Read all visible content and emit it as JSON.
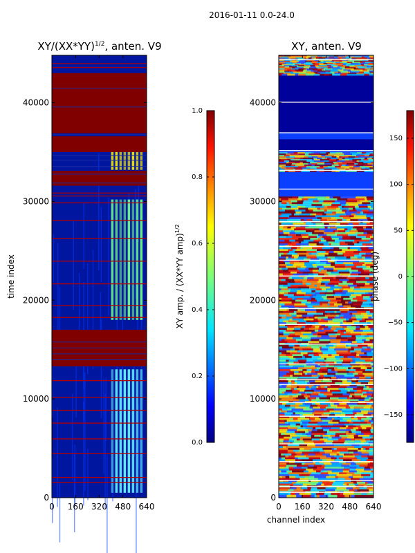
{
  "figure": {
    "suptitle": "2016-01-11 0.0-24.0"
  },
  "chart_data": [
    {
      "type": "heatmap",
      "title_main": "XY/(XX*YY)",
      "title_exponent": "1/2",
      "title_suffix": ", anten. V9",
      "xlabel": "",
      "ylabel": "time index",
      "xlim": [
        0,
        640
      ],
      "ylim": [
        0,
        44800
      ],
      "x_ticks": [
        "0",
        "160",
        "320",
        "480",
        "640"
      ],
      "y_ticks": [
        "0",
        "10000",
        "20000",
        "30000",
        "40000"
      ],
      "y_tick_values": [
        0,
        10000,
        20000,
        30000,
        40000
      ],
      "background_color": "#00169f",
      "saturated_bands": [
        [
          43000,
          36900
        ],
        [
          36600,
          35000
        ],
        [
          33100,
          31600
        ],
        [
          17000,
          13300
        ]
      ],
      "thin_lines_kyear": [
        44000,
        43600,
        30900,
        30600,
        29900,
        28100,
        26300,
        24000,
        21700,
        19500,
        18300,
        11900,
        10200,
        8900,
        7600,
        6000,
        4500,
        2100,
        1600
      ],
      "bright_regions": [
        {
          "x0": 400,
          "x1": 620,
          "y0": 30200,
          "y1": 18000,
          "color": "#75ff88"
        },
        {
          "x0": 400,
          "x1": 620,
          "y0": 13000,
          "y1": 500,
          "color": "#67f3ff"
        },
        {
          "x0": 400,
          "x1": 600,
          "y0": 35000,
          "y1": 33200,
          "color": "#ffef00"
        }
      ],
      "colorbar": {
        "label_main": "XY amp. / (XX*YY amp)",
        "label_exponent": "1/2",
        "range": [
          0,
          1
        ],
        "ticks": [
          "0.0",
          "0.2",
          "0.4",
          "0.6",
          "0.8",
          "1.0"
        ],
        "tick_values": [
          0,
          0.2,
          0.4,
          0.6,
          0.8,
          1.0
        ],
        "colormap": "jet"
      }
    },
    {
      "type": "heatmap",
      "title": "XY, anten. V9",
      "xlabel": "channel index",
      "ylabel": "",
      "xlim": [
        0,
        640
      ],
      "ylim": [
        0,
        44800
      ],
      "x_ticks": [
        "0",
        "160",
        "320",
        "480",
        "640"
      ],
      "y_ticks": [
        "0",
        "10000",
        "20000",
        "30000",
        "40000"
      ],
      "y_tick_values": [
        0,
        10000,
        20000,
        30000,
        40000
      ],
      "background_color": "#00169f",
      "colorbar": {
        "label": "phase (deg)",
        "range": [
          -180,
          180
        ],
        "ticks": [
          "−150",
          "−100",
          "−50",
          "0",
          "50",
          "100",
          "150"
        ],
        "tick_values": [
          -150,
          -100,
          -50,
          0,
          50,
          100,
          150
        ],
        "colormap": "jet"
      }
    }
  ]
}
